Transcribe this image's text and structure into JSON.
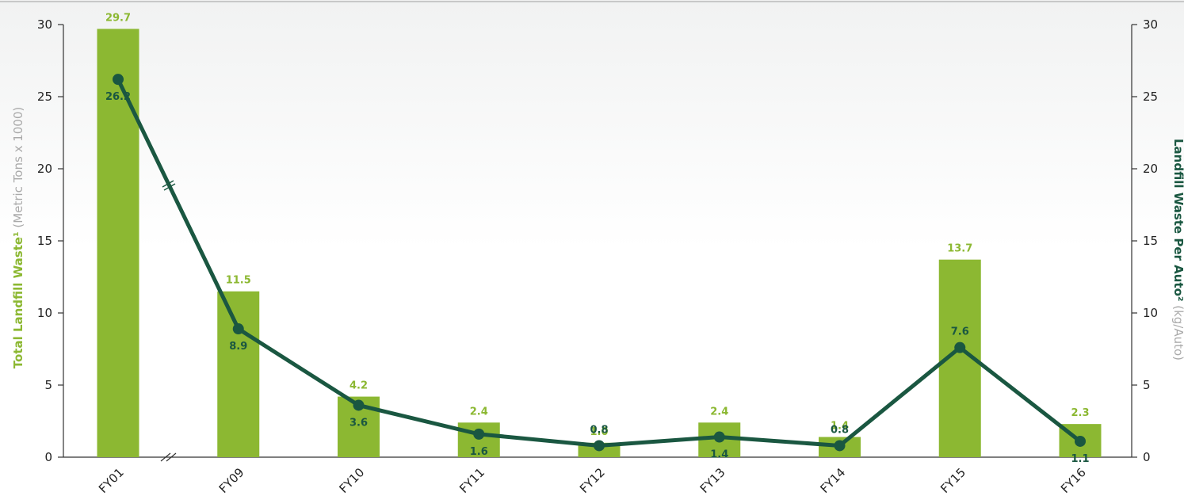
{
  "chart_data": {
    "type": "bar_line",
    "categories": [
      "FY01",
      "FY09",
      "FY10",
      "FY11",
      "FY12",
      "FY13",
      "FY14",
      "FY15",
      "FY16"
    ],
    "y_label": "Total Landfill Waste¹",
    "y_label_unit": "(Metric Tons x 1000)",
    "y2_label": "Landfill Waste Per Auto²",
    "y2_label_unit": "(kg/Auto)",
    "ylim": [
      0,
      30
    ],
    "yticks": [
      0,
      5,
      10,
      15,
      20,
      25,
      30
    ],
    "y2lim": [
      0,
      30
    ],
    "y2ticks": [
      0,
      5,
      10,
      15,
      20,
      25,
      30
    ],
    "series": [
      {
        "name": "Total Landfill Waste",
        "type": "bar",
        "color": "#8cb832",
        "values": [
          29.7,
          11.5,
          4.2,
          2.4,
          1.0,
          2.4,
          1.4,
          13.7,
          2.3
        ],
        "value_labels": [
          "29.7",
          "11.5",
          "4.2",
          "2.4",
          "1.0",
          "2.4",
          "1.4",
          "13.7",
          "2.3"
        ]
      },
      {
        "name": "Landfill Waste Per Auto",
        "type": "line",
        "axis": "y2",
        "color": "#1a5741",
        "values": [
          26.2,
          8.9,
          3.6,
          1.6,
          0.8,
          1.4,
          0.8,
          7.6,
          1.1
        ],
        "value_labels": [
          "26.2",
          "8.9",
          "3.6",
          "1.6",
          "0.8",
          "1.4",
          "0.8",
          "7.6",
          "1.1"
        ]
      }
    ]
  }
}
